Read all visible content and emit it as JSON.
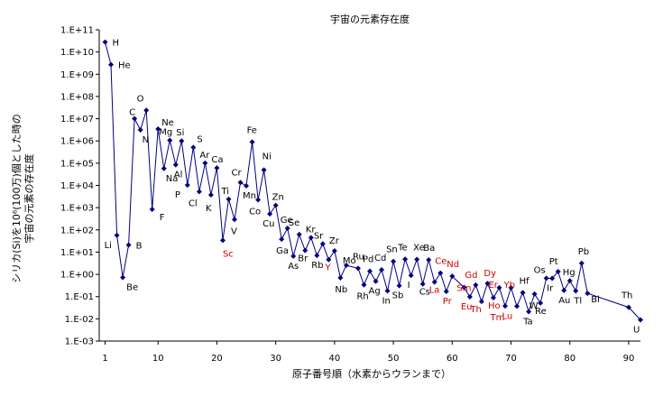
{
  "chart_data": {
    "type": "line",
    "title": "宇宙の元素存在度",
    "xlabel": "原子番号順（水素からウランまで）",
    "ylabel_lines": [
      "シリカ(Si)を10⁶(100万)個とした時の",
      "宇宙の元素の存在度"
    ],
    "y_scale": "log",
    "ylim": [
      0.001,
      100000000000
    ],
    "xlim": [
      0,
      92
    ],
    "x_ticks": [
      1,
      10,
      20,
      30,
      40,
      50,
      60,
      70,
      80,
      90
    ],
    "x_tick_labels": [
      "1",
      "10",
      "20",
      "30",
      "40",
      "50",
      "60",
      "70",
      "80",
      "90"
    ],
    "y_ticks": [
      100000000000.0,
      10000000000.0,
      1000000000.0,
      100000000.0,
      10000000.0,
      1000000.0,
      100000.0,
      10000.0,
      1000.0,
      100.0,
      10.0,
      1.0,
      0.1,
      0.01,
      0.001
    ],
    "y_tick_labels": [
      "1.E+11",
      "1.E+10",
      "1.E+09",
      "1.E+08",
      "1.E+07",
      "1.E+06",
      "1.E+05",
      "1.E+04",
      "1.E+03",
      "1.E+02",
      "1.E+01",
      "1.E+00",
      "1.E-01",
      "1.E-02",
      "1.E-03"
    ],
    "series": [
      {
        "color": "#000080",
        "x": [
          1,
          2,
          3,
          4,
          5,
          6,
          7,
          8,
          9,
          10,
          11,
          12,
          13,
          14,
          15,
          16,
          17,
          18,
          19,
          20,
          21,
          22,
          23,
          24,
          25,
          26,
          27,
          28,
          29,
          30,
          31,
          32,
          33,
          34,
          35,
          36,
          37,
          38,
          39,
          40,
          41,
          42,
          44,
          45,
          46,
          47,
          48,
          49,
          50,
          51,
          52,
          53,
          54,
          55,
          56,
          57,
          58,
          59,
          60,
          62,
          63,
          64,
          65,
          66,
          67,
          68,
          69,
          70,
          71,
          72,
          73,
          74,
          75,
          76,
          77,
          78,
          79,
          80,
          81,
          82,
          83,
          90,
          92
        ],
        "y": [
          27900000000,
          2720000000,
          57,
          0.73,
          21,
          10100000,
          3130000,
          23800000,
          843,
          3440000,
          57400,
          1070000,
          84900,
          1000000,
          10400,
          515000,
          5240,
          101000,
          3770,
          61100,
          34,
          2400,
          293,
          13500,
          9550,
          900000,
          2250,
          49300,
          522,
          1260,
          38,
          118,
          6.6,
          62,
          11.8,
          45,
          7.1,
          23.5,
          4.6,
          11.4,
          0.7,
          2.55,
          1.86,
          0.34,
          1.39,
          0.49,
          1.61,
          0.18,
          3.82,
          0.31,
          4.81,
          0.9,
          4.7,
          0.37,
          4.49,
          0.45,
          1.14,
          0.17,
          0.83,
          0.26,
          0.097,
          0.33,
          0.06,
          0.39,
          0.089,
          0.25,
          0.038,
          0.25,
          0.037,
          0.15,
          0.021,
          0.13,
          0.051,
          0.67,
          0.66,
          1.34,
          0.19,
          0.52,
          0.18,
          3.15,
          0.14,
          0.033,
          0.009
        ]
      }
    ],
    "element_labels": [
      {
        "t": "H",
        "x": 1,
        "y": 27900000000,
        "c": "#000000"
      },
      {
        "t": "He",
        "x": 2,
        "y": 2720000000,
        "c": "#000000"
      },
      {
        "t": "Li",
        "x": 3,
        "y": 57,
        "c": "#000000"
      },
      {
        "t": "Be",
        "x": 4,
        "y": 0.73,
        "c": "#000000"
      },
      {
        "t": "B",
        "x": 5,
        "y": 21,
        "c": "#000000"
      },
      {
        "t": "C",
        "x": 6,
        "y": 10100000,
        "c": "#000000"
      },
      {
        "t": "N",
        "x": 7,
        "y": 3130000,
        "c": "#000000"
      },
      {
        "t": "O",
        "x": 7,
        "y": 23800000,
        "c": "#000000"
      },
      {
        "t": "Ne",
        "x": 10,
        "y": 3440000,
        "c": "#000000"
      },
      {
        "t": "F",
        "x": 9,
        "y": 843,
        "c": "#000000"
      },
      {
        "t": "Na",
        "x": 11,
        "y": 57400,
        "c": "#000000"
      },
      {
        "t": "Mg",
        "x": 12,
        "y": 1070000,
        "c": "#000000"
      },
      {
        "t": "Al",
        "x": 13,
        "y": 84900,
        "c": "#000000"
      },
      {
        "t": "Si",
        "x": 14,
        "y": 1000000,
        "c": "#000000"
      },
      {
        "t": "P",
        "x": 15,
        "y": 10400,
        "c": "#000000"
      },
      {
        "t": "S",
        "x": 16,
        "y": 515000,
        "c": "#000000"
      },
      {
        "t": "Cl",
        "x": 17,
        "y": 5240,
        "c": "#000000"
      },
      {
        "t": "Ar",
        "x": 18,
        "y": 101000,
        "c": "#000000"
      },
      {
        "t": "K",
        "x": 19,
        "y": 3770,
        "c": "#000000"
      },
      {
        "t": "Ca",
        "x": 20,
        "y": 61100,
        "c": "#000000"
      },
      {
        "t": "Sc",
        "x": 21,
        "y": 34,
        "c": "#cc0000"
      },
      {
        "t": "Ti",
        "x": 22,
        "y": 2400,
        "c": "#000000"
      },
      {
        "t": "V",
        "x": 23,
        "y": 293,
        "c": "#000000"
      },
      {
        "t": "Cr",
        "x": 24,
        "y": 13500,
        "c": "#000000"
      },
      {
        "t": "Mn",
        "x": 25,
        "y": 9550,
        "c": "#000000"
      },
      {
        "t": "Fe",
        "x": 26,
        "y": 900000,
        "c": "#000000"
      },
      {
        "t": "Co",
        "x": 27,
        "y": 2250,
        "c": "#000000"
      },
      {
        "t": "Ni",
        "x": 28,
        "y": 49300,
        "c": "#000000"
      },
      {
        "t": "Cu",
        "x": 29,
        "y": 522,
        "c": "#000000"
      },
      {
        "t": "Zn",
        "x": 30,
        "y": 1260,
        "c": "#000000"
      },
      {
        "t": "Ga",
        "x": 31,
        "y": 38,
        "c": "#000000"
      },
      {
        "t": "Ge",
        "x": 32,
        "y": 118,
        "c": "#000000"
      },
      {
        "t": "As",
        "x": 33,
        "y": 6.6,
        "c": "#000000"
      },
      {
        "t": "Se",
        "x": 34,
        "y": 62,
        "c": "#000000"
      },
      {
        "t": "Br",
        "x": 35,
        "y": 11.8,
        "c": "#000000"
      },
      {
        "t": "Kr",
        "x": 36,
        "y": 45,
        "c": "#000000"
      },
      {
        "t": "Rb",
        "x": 37,
        "y": 7.1,
        "c": "#000000"
      },
      {
        "t": "Sr",
        "x": 38,
        "y": 23.5,
        "c": "#000000"
      },
      {
        "t": "Y",
        "x": 39,
        "y": 4.6,
        "c": "#cc0000"
      },
      {
        "t": "Zr",
        "x": 40,
        "y": 11.4,
        "c": "#000000"
      },
      {
        "t": "Nb",
        "x": 41,
        "y": 0.7,
        "c": "#000000"
      },
      {
        "t": "Mo",
        "x": 42,
        "y": 2.55,
        "c": "#000000"
      },
      {
        "t": "Ru",
        "x": 44,
        "y": 1.86,
        "c": "#000000"
      },
      {
        "t": "Rh",
        "x": 45,
        "y": 0.34,
        "c": "#000000"
      },
      {
        "t": "Pd",
        "x": 46,
        "y": 1.39,
        "c": "#000000"
      },
      {
        "t": "Ag",
        "x": 47,
        "y": 0.49,
        "c": "#000000"
      },
      {
        "t": "Cd",
        "x": 48,
        "y": 1.61,
        "c": "#000000"
      },
      {
        "t": "In",
        "x": 49,
        "y": 0.18,
        "c": "#000000"
      },
      {
        "t": "Sn",
        "x": 50,
        "y": 3.82,
        "c": "#000000"
      },
      {
        "t": "Sb",
        "x": 51,
        "y": 0.31,
        "c": "#000000"
      },
      {
        "t": "Te",
        "x": 52,
        "y": 4.81,
        "c": "#000000"
      },
      {
        "t": "I",
        "x": 53,
        "y": 0.9,
        "c": "#000000"
      },
      {
        "t": "Xe",
        "x": 54,
        "y": 4.7,
        "c": "#000000"
      },
      {
        "t": "Cs",
        "x": 55,
        "y": 0.37,
        "c": "#000000"
      },
      {
        "t": "Ba",
        "x": 56,
        "y": 4.49,
        "c": "#000000"
      },
      {
        "t": "La",
        "x": 57,
        "y": 0.45,
        "c": "#cc0000"
      },
      {
        "t": "Ce",
        "x": 58,
        "y": 1.14,
        "c": "#cc0000"
      },
      {
        "t": "Pr",
        "x": 59,
        "y": 0.17,
        "c": "#cc0000"
      },
      {
        "t": "Nd",
        "x": 60,
        "y": 0.83,
        "c": "#cc0000"
      },
      {
        "t": "Sm",
        "x": 62,
        "y": 0.26,
        "c": "#cc0000"
      },
      {
        "t": "Eu",
        "x": 63,
        "y": 0.097,
        "c": "#cc0000"
      },
      {
        "t": "Gd",
        "x": 64,
        "y": 0.33,
        "c": "#cc0000"
      },
      {
        "t": "Th",
        "x": 64,
        "y": 0.06,
        "c": "#cc0000"
      },
      {
        "t": "Dy",
        "x": 66,
        "y": 0.39,
        "c": "#cc0000"
      },
      {
        "t": "Ho",
        "x": 67,
        "y": 0.089,
        "c": "#cc0000"
      },
      {
        "t": "Er",
        "x": 68,
        "y": 0.25,
        "c": "#cc0000"
      },
      {
        "t": "Tm",
        "x": 68,
        "y": 0.038,
        "c": "#cc0000"
      },
      {
        "t": "Yb",
        "x": 70,
        "y": 0.25,
        "c": "#cc0000"
      },
      {
        "t": "Lu",
        "x": 70,
        "y": 0.037,
        "c": "#cc0000"
      },
      {
        "t": "Hf",
        "x": 72,
        "y": 0.15,
        "c": "#000000"
      },
      {
        "t": "Ta",
        "x": 73,
        "y": 0.021,
        "c": "#000000"
      },
      {
        "t": "W",
        "x": 74,
        "y": 0.13,
        "c": "#000000"
      },
      {
        "t": "Re",
        "x": 75,
        "y": 0.051,
        "c": "#000000"
      },
      {
        "t": "Os",
        "x": 76,
        "y": 0.67,
        "c": "#000000"
      },
      {
        "t": "Ir",
        "x": 77,
        "y": 0.66,
        "c": "#000000"
      },
      {
        "t": "Pt",
        "x": 78,
        "y": 1.34,
        "c": "#000000"
      },
      {
        "t": "Au",
        "x": 79,
        "y": 0.19,
        "c": "#000000"
      },
      {
        "t": "Hg",
        "x": 80,
        "y": 0.52,
        "c": "#000000"
      },
      {
        "t": "Tl",
        "x": 81,
        "y": 0.18,
        "c": "#000000"
      },
      {
        "t": "Pb",
        "x": 82,
        "y": 3.15,
        "c": "#000000"
      },
      {
        "t": "Bi",
        "x": 83,
        "y": 0.14,
        "c": "#000000"
      },
      {
        "t": "Th",
        "x": 90,
        "y": 0.033,
        "c": "#000000"
      },
      {
        "t": "U",
        "x": 92,
        "y": 0.009,
        "c": "#000000"
      }
    ]
  }
}
